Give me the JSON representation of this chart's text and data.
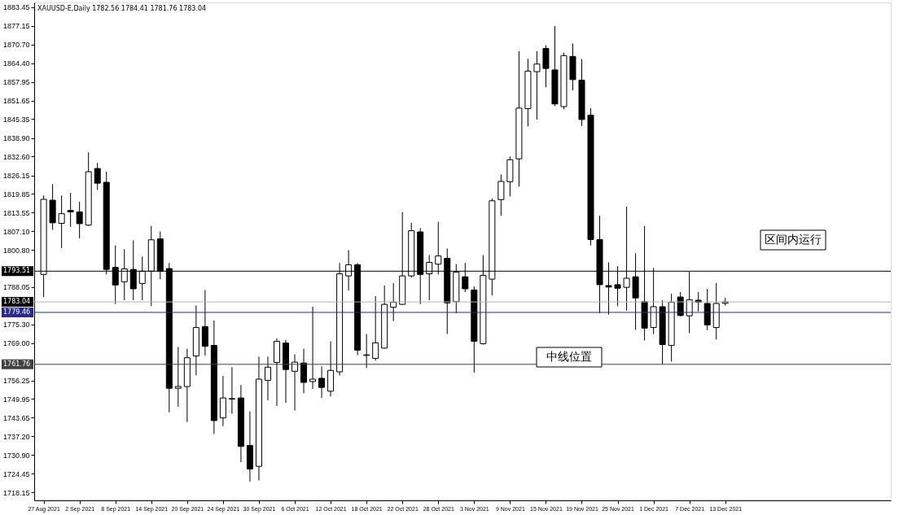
{
  "chart_data": {
    "type": "candlestick",
    "title": "XAUUSD-E,Daily  1782.56 1784.41 1781.76 1783.04",
    "categories": [
      "27 Aug 2021",
      null,
      null,
      null,
      "2 Sep 2021",
      null,
      null,
      null,
      "8 Sep 2021",
      null,
      null,
      null,
      "14 Sep 2021",
      null,
      null,
      null,
      "20 Sep 2021",
      null,
      null,
      null,
      "24 Sep 2021",
      null,
      null,
      null,
      "30 Sep 2021",
      null,
      null,
      null,
      "6 Oct 2021",
      null,
      null,
      null,
      "12 Oct 2021",
      null,
      null,
      null,
      "18 Oct 2021",
      null,
      null,
      null,
      "22 Oct 2021",
      null,
      null,
      null,
      "28 Oct 2021",
      null,
      null,
      null,
      "3 Nov 2021",
      null,
      null,
      null,
      "9 Nov 2021",
      null,
      null,
      null,
      "15 Nov 2021",
      null,
      null,
      null,
      "19 Nov 2021",
      null,
      null,
      null,
      "25 Nov 2021",
      null,
      null,
      null,
      "1 Dec 2021",
      null,
      null,
      null,
      "7 Dec 2021",
      null,
      null,
      null,
      "13 Dec 2021"
    ],
    "ohlc": [
      [
        1792.4,
        1819.3,
        1784.7,
        1818.0
      ],
      [
        1817.7,
        1823.2,
        1807.6,
        1810.0
      ],
      [
        1809.8,
        1819.3,
        1801.4,
        1813.1
      ],
      [
        1814.2,
        1820.2,
        1808.6,
        1813.7
      ],
      [
        1813.7,
        1817.2,
        1804.7,
        1809.7
      ],
      [
        1809.2,
        1834.0,
        1808.9,
        1827.4
      ],
      [
        1828.5,
        1830.4,
        1821.2,
        1823.5
      ],
      [
        1823.8,
        1827.4,
        1792.4,
        1794.1
      ],
      [
        1794.8,
        1802.3,
        1782.3,
        1788.8
      ],
      [
        1789.9,
        1801.0,
        1783.6,
        1794.3
      ],
      [
        1794.1,
        1804.0,
        1783.6,
        1787.5
      ],
      [
        1789.3,
        1798.5,
        1783.6,
        1793.5
      ],
      [
        1793.5,
        1808.9,
        1781.6,
        1804.2
      ],
      [
        1804.5,
        1807.0,
        1790.8,
        1793.5
      ],
      [
        1794.4,
        1796.3,
        1745.4,
        1753.6
      ],
      [
        1753.6,
        1767.7,
        1747.3,
        1754.2
      ],
      [
        1754.2,
        1767.1,
        1742.1,
        1764.0
      ],
      [
        1764.6,
        1781.8,
        1758.0,
        1774.3
      ],
      [
        1774.6,
        1787.1,
        1764.7,
        1767.9
      ],
      [
        1768.2,
        1776.7,
        1738.0,
        1742.6
      ],
      [
        1743.5,
        1757.8,
        1740.7,
        1750.3
      ],
      [
        1749.9,
        1760.8,
        1744.9,
        1750.1
      ],
      [
        1750.3,
        1754.7,
        1728.4,
        1733.8
      ],
      [
        1734.1,
        1745.7,
        1721.8,
        1726.1
      ],
      [
        1727.0,
        1764.4,
        1722.2,
        1756.7
      ],
      [
        1756.3,
        1764.4,
        1749.5,
        1760.8
      ],
      [
        1762.4,
        1770.6,
        1747.6,
        1769.6
      ],
      [
        1769.0,
        1770.1,
        1748.6,
        1760.0
      ],
      [
        1759.4,
        1765.2,
        1746.0,
        1762.5
      ],
      [
        1762.2,
        1767.1,
        1751.9,
        1755.6
      ],
      [
        1755.9,
        1781.4,
        1753.4,
        1756.7
      ],
      [
        1757.0,
        1761.1,
        1750.3,
        1753.9
      ],
      [
        1752.6,
        1769.6,
        1750.8,
        1759.7
      ],
      [
        1759.2,
        1796.3,
        1758.0,
        1792.6
      ],
      [
        1791.9,
        1800.7,
        1786.9,
        1795.7
      ],
      [
        1795.7,
        1796.3,
        1764.9,
        1766.6
      ],
      [
        1764.8,
        1772.1,
        1760.5,
        1765.0
      ],
      [
        1763.8,
        1785.0,
        1763.0,
        1769.1
      ],
      [
        1767.3,
        1788.6,
        1767.1,
        1782.2
      ],
      [
        1781.2,
        1789.4,
        1776.5,
        1782.9
      ],
      [
        1782.2,
        1813.6,
        1782.0,
        1791.9
      ],
      [
        1791.9,
        1810.0,
        1791.3,
        1807.3
      ],
      [
        1806.9,
        1808.2,
        1782.3,
        1792.4
      ],
      [
        1792.6,
        1799.0,
        1783.6,
        1796.5
      ],
      [
        1795.9,
        1810.3,
        1792.4,
        1798.7
      ],
      [
        1797.9,
        1801.2,
        1772.1,
        1782.7
      ],
      [
        1783.1,
        1795.9,
        1779.2,
        1793.2
      ],
      [
        1791.6,
        1796.3,
        1786.4,
        1787.5
      ],
      [
        1787.1,
        1788.3,
        1758.9,
        1769.6
      ],
      [
        1768.8,
        1799.0,
        1768.5,
        1792.1
      ],
      [
        1790.8,
        1818.3,
        1785.3,
        1817.5
      ],
      [
        1817.9,
        1826.5,
        1812.4,
        1824.1
      ],
      [
        1824.0,
        1832.6,
        1819.0,
        1831.5
      ],
      [
        1831.8,
        1868.5,
        1822.3,
        1849.1
      ],
      [
        1848.9,
        1865.9,
        1842.8,
        1861.7
      ],
      [
        1861.5,
        1868.5,
        1845.2,
        1864.1
      ],
      [
        1869.4,
        1870.5,
        1856.2,
        1862.6
      ],
      [
        1862.1,
        1877.1,
        1849.8,
        1850.5
      ],
      [
        1849.6,
        1868.0,
        1848.7,
        1867.0
      ],
      [
        1866.7,
        1871.1,
        1855.1,
        1858.8
      ],
      [
        1858.6,
        1865.8,
        1843.0,
        1845.2
      ],
      [
        1846.7,
        1849.1,
        1802.3,
        1804.3
      ],
      [
        1804.3,
        1812.4,
        1779.2,
        1788.9
      ],
      [
        1788.6,
        1796.5,
        1778.7,
        1788.1
      ],
      [
        1788.9,
        1795.2,
        1781.6,
        1787.7
      ],
      [
        1788.0,
        1815.5,
        1780.1,
        1791.1
      ],
      [
        1791.6,
        1799.6,
        1773.5,
        1784.4
      ],
      [
        1783.1,
        1808.9,
        1769.9,
        1774.1
      ],
      [
        1774.3,
        1794.6,
        1772.1,
        1781.4
      ],
      [
        1781.4,
        1783.6,
        1761.8,
        1768.5
      ],
      [
        1768.2,
        1785.8,
        1762.7,
        1782.9
      ],
      [
        1784.7,
        1786.4,
        1778.1,
        1778.4
      ],
      [
        1778.3,
        1793.3,
        1772.4,
        1783.8
      ],
      [
        1783.6,
        1786.4,
        1779.8,
        1782.9
      ],
      [
        1782.5,
        1787.5,
        1773.4,
        1775.2
      ],
      [
        1774.3,
        1789.5,
        1770.2,
        1782.5
      ],
      [
        1782.56,
        1784.41,
        1781.76,
        1783.04
      ]
    ],
    "ylim": [
      1715.4,
      1885.1
    ],
    "yticks": [
      1883.45,
      1877.15,
      {
        "value": 1870.7,
        "label": "1870.70"
      },
      {
        "value": 1864.4,
        "label": "1864.40"
      },
      1857.95,
      1851.65,
      1845.35,
      {
        "value": 1838.9,
        "label": "1838.90"
      },
      {
        "value": 1832.6,
        "label": "1832.60"
      },
      1826.15,
      1819.85,
      1813.55,
      {
        "value": 1807.1,
        "label": "1807.10"
      },
      {
        "value": 1800.8,
        "label": "1800.80"
      },
      1788.05,
      {
        "value": 1775.3,
        "label": "1775.30"
      },
      {
        "value": 1769.0,
        "label": "1769.00"
      },
      1756.25,
      1749.95,
      1743.65,
      {
        "value": 1737.2,
        "label": "1737.20"
      },
      {
        "value": 1730.9,
        "label": "1730.90"
      },
      1724.45,
      1718.15
    ],
    "ref_lines": [
      {
        "axis": "y",
        "value": 1793.51,
        "label": "1793.51",
        "color": "#000000"
      },
      {
        "axis": "y",
        "value": 1783.04,
        "label": "1783.04",
        "color": "#b4b4b4"
      },
      {
        "axis": "y",
        "value": 1779.46,
        "label": "1779.46",
        "color": "#2b2b8c"
      },
      {
        "axis": "y",
        "value": 1761.76,
        "label": "1761.76",
        "color": "#404040"
      }
    ],
    "annotations": [
      "区间内运行",
      "中线位置"
    ],
    "grid": false
  }
}
